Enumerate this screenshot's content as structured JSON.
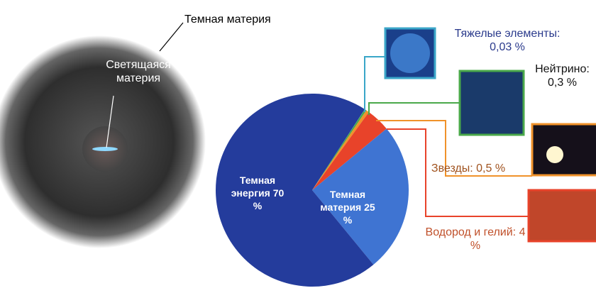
{
  "chart_data": {
    "type": "pie",
    "categories": [
      "Тяжелые элементы:",
      "Нейтрино:",
      "Звезды:",
      "Водород и гелий:",
      "Темная материя",
      "Темная энергия"
    ],
    "values": [
      0.03,
      0.3,
      0.5,
      4,
      25,
      70
    ],
    "value_labels": [
      "0,03 %",
      "0,3 %",
      "0,5 %",
      "4 %",
      "25 %",
      "70 %"
    ],
    "colors": [
      "#3aa6c8",
      "#4aa84a",
      "#f0922a",
      "#e8432a",
      "#3f74d2",
      "#243c9c"
    ],
    "annotations": [
      "Темная материя",
      "Светящаяся материя"
    ]
  }
}
